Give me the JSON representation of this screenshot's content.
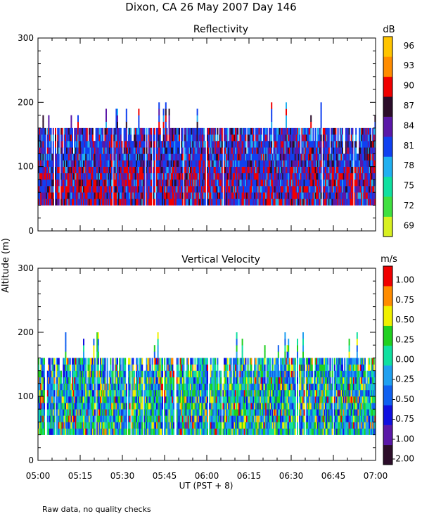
{
  "title": "Dixon, CA 26 May 2007  Day 146",
  "footer": "Raw data, no quality checks",
  "ylabel": "Altitude (m)",
  "xlabel": "UT  (PST + 8)",
  "colors": {
    "reflectivity": [
      "#d8f020",
      "#40e040",
      "#10e0a0",
      "#20b0f0",
      "#1040f0",
      "#5a18a8",
      "#2c0d2a",
      "#f00000",
      "#ff8c00",
      "#ffc400"
    ],
    "velocity": [
      "#2c0d2a",
      "#5a18a8",
      "#1010e0",
      "#1060f0",
      "#20a0f0",
      "#10e0a0",
      "#20d020",
      "#f0f000",
      "#ff8c00",
      "#f00000"
    ]
  },
  "chart_data": [
    {
      "type": "heatmap",
      "title": "Reflectivity",
      "x": [
        "05:00",
        "05:15",
        "05:30",
        "05:45",
        "06:00",
        "06:15",
        "06:30",
        "06:45",
        "07:00"
      ],
      "xlim": [
        "05:00",
        "07:00"
      ],
      "ylim": [
        0,
        300
      ],
      "yticks": [
        0,
        100,
        200,
        300
      ],
      "colorbar": {
        "unit": "dB",
        "labels": [
          "69",
          "72",
          "75",
          "78",
          "81",
          "84",
          "87",
          "90",
          "93",
          "96"
        ],
        "values": [
          69,
          72,
          75,
          78,
          81,
          84,
          87,
          90,
          93,
          96
        ]
      },
      "data_height_range": [
        40,
        220
      ],
      "typical_top": 160,
      "value_range": [
        78,
        90
      ]
    },
    {
      "type": "heatmap",
      "title": "Vertical Velocity",
      "x": [
        "05:00",
        "05:15",
        "05:30",
        "05:45",
        "06:00",
        "06:15",
        "06:30",
        "06:45",
        "07:00"
      ],
      "xlim": [
        "05:00",
        "07:00"
      ],
      "ylim": [
        0,
        300
      ],
      "yticks": [
        0,
        100,
        200,
        300
      ],
      "colorbar": {
        "unit": "m/s",
        "labels": [
          "-2.00",
          "-1.00",
          "-0.75",
          "-0.50",
          "-0.25",
          "0.00",
          "0.25",
          "0.50",
          "0.75",
          "1.00"
        ],
        "values": [
          -2.0,
          -1.0,
          -0.75,
          -0.5,
          -0.25,
          0.0,
          0.25,
          0.5,
          0.75,
          1.0
        ]
      },
      "data_height_range": [
        40,
        220
      ],
      "typical_top": 160,
      "value_range": [
        -1.0,
        0.5
      ]
    }
  ]
}
